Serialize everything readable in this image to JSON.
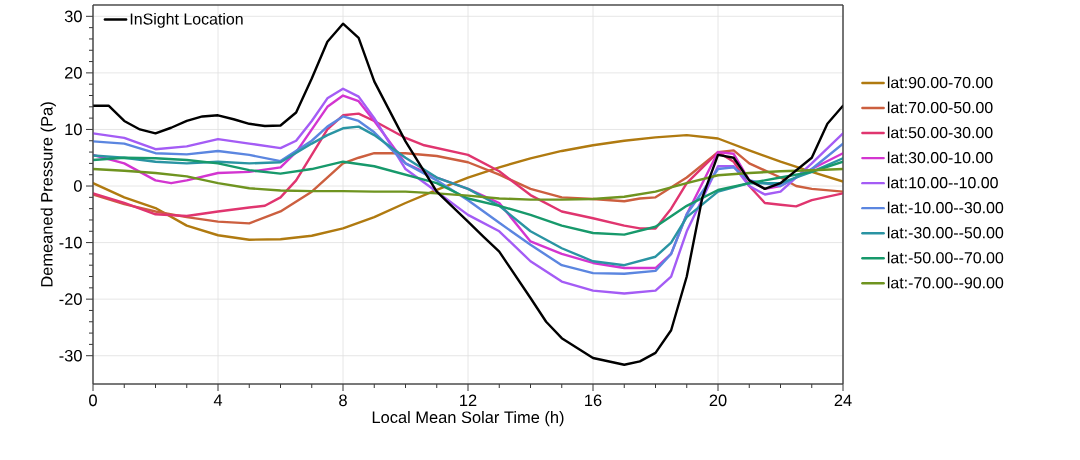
{
  "chart_data": {
    "type": "line",
    "xlabel": "Local Mean Solar Time (h)",
    "ylabel": "Demeaned Pressure (Pa)",
    "xlim": [
      0,
      24
    ],
    "ylim": [
      -35,
      32
    ],
    "xticks": [
      0,
      4,
      8,
      12,
      16,
      20,
      24
    ],
    "yticks": [
      -30,
      -20,
      -10,
      0,
      10,
      20,
      30
    ],
    "grid": true,
    "legend": "right",
    "line_style": "solid",
    "marker": "none",
    "series": [
      {
        "name": "InSight Location",
        "color": "#000000",
        "x": [
          0,
          0.5,
          1,
          1.5,
          2,
          2.5,
          3,
          3.5,
          4,
          4.5,
          5,
          5.5,
          6,
          6.5,
          7,
          7.5,
          8,
          8.5,
          9,
          10,
          11,
          12,
          12.5,
          13,
          14,
          14.5,
          15,
          16,
          17,
          17.5,
          18,
          18.5,
          19,
          19.5,
          20,
          20.5,
          21,
          21.5,
          22,
          23,
          23.5,
          24
        ],
        "values": [
          14.2,
          14.2,
          11.5,
          10,
          9.3,
          10.3,
          11.5,
          12.3,
          12.5,
          11.8,
          11,
          10.6,
          10.7,
          13,
          19,
          25.5,
          28.7,
          26.2,
          18.5,
          7.9,
          -1,
          -6.3,
          -9,
          -11.6,
          -19.8,
          -24,
          -26.9,
          -30.4,
          -31.6,
          -31,
          -29.5,
          -25.5,
          -16,
          -2,
          5.5,
          5,
          1,
          -0.5,
          0.5,
          5,
          11,
          14.2
        ]
      },
      {
        "name": "lat:90.00-70.00",
        "color": "#b07a10",
        "x": [
          0,
          1,
          2,
          3,
          4,
          5,
          6,
          7,
          8,
          9,
          10,
          11,
          12,
          13,
          14,
          15,
          16,
          17,
          18,
          19,
          20,
          21,
          22,
          23,
          24
        ],
        "values": [
          0.5,
          -2,
          -3.9,
          -7,
          -8.7,
          -9.5,
          -9.4,
          -8.8,
          -7.5,
          -5.5,
          -3,
          -0.7,
          1.5,
          3.3,
          4.9,
          6.2,
          7.2,
          8,
          8.6,
          9,
          8.4,
          6.3,
          4.3,
          2.5,
          0.8
        ]
      },
      {
        "name": "lat:70.00-50.00",
        "color": "#cc5f3f",
        "x": [
          0,
          1,
          2,
          3,
          4,
          5,
          6,
          7,
          7.5,
          8,
          8.5,
          9,
          10,
          11,
          12,
          13,
          14,
          15,
          16,
          17,
          17.5,
          18,
          19,
          20,
          20.5,
          21,
          22,
          22.5,
          23,
          24
        ],
        "values": [
          -1.5,
          -3.2,
          -4.5,
          -5.5,
          -6.3,
          -6.6,
          -4.5,
          -1,
          1.5,
          4,
          5,
          5.8,
          5.8,
          5.3,
          4.2,
          2,
          -0.5,
          -2,
          -2.3,
          -2.7,
          -2.2,
          -2,
          1.5,
          6,
          6.3,
          4,
          1.5,
          0,
          -0.5,
          -1
        ]
      },
      {
        "name": "lat:50.00-30.00",
        "color": "#e0356f",
        "x": [
          0,
          1,
          2,
          3,
          4,
          5,
          5.5,
          6,
          6.5,
          7,
          7.5,
          8,
          8.5,
          9,
          10,
          10.6,
          12,
          13,
          14,
          15,
          16,
          17,
          17.5,
          18,
          18.5,
          19,
          20,
          20.5,
          21,
          21.5,
          22,
          22.5,
          23,
          24
        ],
        "values": [
          -1.3,
          -3,
          -5,
          -5.3,
          -4.5,
          -3.8,
          -3.5,
          -2,
          1,
          5.5,
          10,
          12.5,
          12.8,
          11.5,
          8.5,
          7.2,
          5.5,
          2.6,
          -1.6,
          -4.5,
          -5.7,
          -7,
          -7.5,
          -7.5,
          -4,
          0.5,
          6,
          4.3,
          0,
          -3,
          -3.3,
          -3.6,
          -2.5,
          -1.3
        ]
      },
      {
        "name": "lat:30.00-10.00",
        "color": "#d335d0",
        "x": [
          0,
          1,
          2,
          2.5,
          3,
          4,
          5,
          6,
          6.5,
          7,
          7.5,
          8,
          8.5,
          9,
          10,
          11,
          12,
          13,
          14,
          15,
          16,
          17,
          18,
          18.5,
          19,
          20,
          20.5,
          21,
          21.5,
          22,
          23,
          24
        ],
        "values": [
          5.5,
          4,
          1,
          0.5,
          1,
          2.3,
          2.5,
          3.3,
          6,
          10,
          14,
          16,
          15,
          11.5,
          4,
          1.5,
          -0.5,
          -3,
          -9.8,
          -12,
          -13.6,
          -14.5,
          -14.5,
          -12,
          -5,
          6,
          5.7,
          1,
          -0.5,
          0,
          3,
          5.8
        ]
      },
      {
        "name": "lat:10.00--10.00",
        "color": "#a45cf5",
        "x": [
          0,
          1,
          2,
          3,
          4,
          5,
          6,
          6.5,
          7,
          7.5,
          8,
          8.5,
          9,
          10,
          11,
          12,
          13,
          14,
          15,
          16,
          17,
          18,
          18.5,
          19,
          20,
          20.5,
          21,
          21.5,
          22,
          23,
          24
        ],
        "values": [
          9.3,
          8.5,
          6.5,
          7,
          8.3,
          7.5,
          6.7,
          8,
          11.5,
          15.5,
          17.2,
          15.8,
          12,
          3,
          -1,
          -5.1,
          -8,
          -13.3,
          -16.9,
          -18.5,
          -19,
          -18.5,
          -16,
          -8,
          3.5,
          3.5,
          0,
          -1.5,
          -1,
          4,
          9.3
        ]
      },
      {
        "name": "lat:-10.00--30.00",
        "color": "#5b86e0",
        "x": [
          0,
          1,
          2,
          3,
          4,
          5,
          6,
          7,
          7.5,
          8,
          8.5,
          9,
          10,
          11,
          12,
          13,
          14,
          15,
          16,
          17,
          18,
          18.5,
          19,
          20,
          20.5,
          21,
          22,
          23,
          24
        ],
        "values": [
          7.9,
          7.5,
          5.8,
          5.6,
          6.2,
          5.5,
          4.4,
          8,
          10.5,
          12.3,
          11.5,
          9.5,
          4,
          1,
          -2.5,
          -6.5,
          -10.4,
          -14,
          -15.4,
          -15.5,
          -15,
          -12,
          -5,
          3,
          3.3,
          1,
          0,
          3,
          7.5
        ]
      },
      {
        "name": "lat:-30.00--50.00",
        "color": "#2a94a3",
        "x": [
          0,
          1,
          2,
          3,
          4,
          5,
          6,
          7,
          7.5,
          8,
          8.5,
          9,
          10,
          11,
          12,
          13,
          14,
          15,
          16,
          17,
          18,
          18.5,
          19,
          20,
          21,
          22,
          23,
          24
        ],
        "values": [
          5.4,
          5,
          4.3,
          4,
          4.3,
          4,
          4.2,
          7.5,
          9,
          10.2,
          10.5,
          9,
          5,
          1.5,
          -0.5,
          -3.5,
          -8,
          -11,
          -13.3,
          -14,
          -12.5,
          -10,
          -5.5,
          -1,
          0.5,
          0.5,
          2.5,
          4.9
        ]
      },
      {
        "name": "lat:-50.00--70.00",
        "color": "#17996b",
        "x": [
          0,
          1,
          2,
          3,
          4,
          5,
          6,
          7,
          8,
          9,
          10,
          11,
          12,
          13,
          14,
          15,
          16,
          17,
          18,
          19,
          20,
          21,
          22,
          23,
          24
        ],
        "values": [
          4.6,
          5,
          4.9,
          4.6,
          4,
          2.8,
          2.2,
          3,
          4.3,
          3.5,
          2,
          0.5,
          -2.2,
          -3.5,
          -5.1,
          -7,
          -8.3,
          -8.6,
          -7.2,
          -3.5,
          -0.7,
          0.5,
          1.5,
          2.5,
          4.3
        ]
      },
      {
        "name": "lat:-70.00--90.00",
        "color": "#6f9420",
        "x": [
          0,
          1,
          2,
          3,
          4,
          5,
          6,
          7,
          8,
          9,
          10,
          11,
          12,
          13,
          14,
          15,
          16,
          17,
          18,
          19,
          20,
          21,
          22,
          23,
          24
        ],
        "values": [
          3,
          2.7,
          2.3,
          1.7,
          0.5,
          -0.4,
          -0.8,
          -0.9,
          -0.9,
          -1,
          -1,
          -1.3,
          -1.7,
          -2.2,
          -2.4,
          -2.4,
          -2.3,
          -1.9,
          -1,
          0.5,
          1.9,
          2.3,
          2.6,
          2.8,
          3
        ]
      }
    ]
  }
}
